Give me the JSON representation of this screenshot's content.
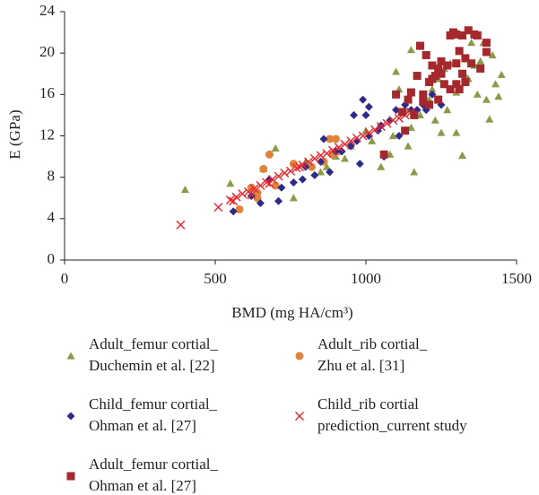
{
  "chart_data": {
    "type": "scatter",
    "xlabel": "BMD (mg HA/cm³)",
    "ylabel": "E (GPa)",
    "xlim": [
      0,
      1500
    ],
    "xticks": [
      0,
      500,
      1000,
      1500
    ],
    "ylim": [
      0,
      24
    ],
    "yticks": [
      0,
      4,
      8,
      12,
      16,
      20,
      24
    ],
    "grid": false,
    "series": [
      {
        "name": "Adult_femur cortial_\nDuchemin et al. [22]",
        "color": "#8b9b49",
        "marker": "triangle",
        "x": [
          400,
          550,
          620,
          660,
          700,
          760,
          800,
          850,
          870,
          900,
          930,
          950,
          1000,
          1020,
          1050,
          1080,
          1090,
          1100,
          1110,
          1130,
          1140,
          1150,
          1160,
          1150,
          1180,
          1200,
          1210,
          1220,
          1240,
          1250,
          1260,
          1280,
          1300,
          1320,
          1330,
          1340,
          1360,
          1370,
          1380,
          1390,
          1400,
          1410,
          1420,
          1440,
          1450,
          1430,
          1350,
          1300,
          1270,
          1230
        ],
        "y": [
          6.8,
          7.4,
          6.9,
          8.8,
          10.8,
          6.0,
          9.5,
          8.5,
          9.0,
          10.0,
          9.8,
          11.0,
          12.5,
          11.5,
          9.0,
          10.2,
          12.0,
          18.2,
          16.5,
          14.5,
          11.0,
          12.8,
          8.5,
          20.3,
          14.0,
          15.0,
          15.5,
          16.5,
          17.5,
          12.3,
          18.5,
          19.0,
          12.3,
          10.1,
          17.8,
          17.5,
          18.8,
          16.0,
          19.2,
          21.0,
          15.5,
          13.6,
          19.8,
          15.8,
          17.9,
          17.0,
          21.0,
          16.2,
          14.5,
          13.5
        ]
      },
      {
        "name": "Adult_rib cortial_\nZhu et al. [31]",
        "color": "#e0833a",
        "marker": "circle",
        "x": [
          580,
          620,
          640,
          660,
          680,
          700,
          760,
          820,
          860,
          880,
          890,
          900,
          910,
          640
        ],
        "y": [
          4.9,
          7.0,
          6.0,
          8.8,
          10.2,
          7.2,
          9.3,
          9.0,
          9.5,
          11.7,
          10.2,
          11.7,
          10.5,
          6.5
        ]
      },
      {
        "name": "Child_femur cortial_\nOhman et al. [27]",
        "color": "#2e2a8c",
        "marker": "diamond",
        "x": [
          560,
          620,
          650,
          680,
          710,
          720,
          760,
          790,
          800,
          830,
          850,
          860,
          880,
          900,
          920,
          950,
          970,
          980,
          990,
          1000,
          1010,
          1040,
          1050,
          1060,
          1080,
          1100,
          1110,
          1130,
          1150,
          1170,
          1190,
          1200,
          1220,
          1250,
          1010,
          960
        ],
        "y": [
          4.7,
          6.2,
          5.5,
          7.8,
          5.7,
          7.0,
          7.5,
          7.8,
          9.0,
          8.2,
          9.5,
          11.7,
          8.5,
          10.5,
          10.5,
          11.0,
          11.5,
          9.3,
          15.5,
          14.0,
          12.0,
          12.5,
          13.0,
          10.0,
          13.5,
          14.5,
          12.0,
          15.0,
          14.5,
          14.5,
          15.0,
          14.5,
          16.0,
          15.0,
          14.8,
          14.0
        ]
      },
      {
        "name": "Child_rib cortial\nprediction_current study",
        "color": "#e8262b",
        "marker": "x",
        "x": [
          385,
          510,
          550,
          560,
          570,
          590,
          610,
          620,
          630,
          650,
          670,
          680,
          690,
          710,
          730,
          750,
          770,
          780,
          790,
          810,
          830,
          850,
          870,
          890,
          910,
          930,
          950,
          970,
          990,
          1010,
          1030,
          1050,
          1070,
          1090,
          1110,
          1130,
          1150
        ],
        "y": [
          3.4,
          5.1,
          5.8,
          5.7,
          6.1,
          6.4,
          6.6,
          6.3,
          6.9,
          7.2,
          7.5,
          7.4,
          7.8,
          8.1,
          8.4,
          8.6,
          8.9,
          9.0,
          9.2,
          9.5,
          9.8,
          10.1,
          10.3,
          10.6,
          10.9,
          11.2,
          11.5,
          11.8,
          12.0,
          12.3,
          12.6,
          12.9,
          13.2,
          13.5,
          13.7,
          14.0,
          14.3
        ]
      },
      {
        "name": "Adult_femur cortial_\nOhman et al. [27]",
        "color": "#a4282e",
        "marker": "square",
        "x": [
          1060,
          1100,
          1120,
          1130,
          1140,
          1150,
          1160,
          1170,
          1180,
          1190,
          1200,
          1210,
          1210,
          1220,
          1230,
          1240,
          1240,
          1250,
          1260,
          1270,
          1280,
          1290,
          1300,
          1300,
          1310,
          1310,
          1320,
          1330,
          1340,
          1330,
          1350,
          1360,
          1370,
          1380,
          1400,
          1400,
          1280,
          1250,
          1220,
          1190,
          1300,
          1320
        ],
        "y": [
          10.2,
          16.0,
          14.3,
          12.5,
          15.5,
          16.2,
          14.0,
          17.8,
          20.7,
          16.0,
          19.8,
          15.0,
          17.2,
          18.8,
          17.8,
          18.5,
          15.5,
          18.0,
          17.0,
          18.8,
          21.7,
          22.0,
          21.8,
          17.0,
          20.2,
          16.5,
          21.7,
          19.5,
          22.2,
          17.2,
          19.0,
          21.8,
          21.7,
          18.5,
          20.1,
          21.0,
          16.5,
          19.2,
          17.5,
          15.3,
          19.0,
          18.0
        ]
      }
    ]
  }
}
